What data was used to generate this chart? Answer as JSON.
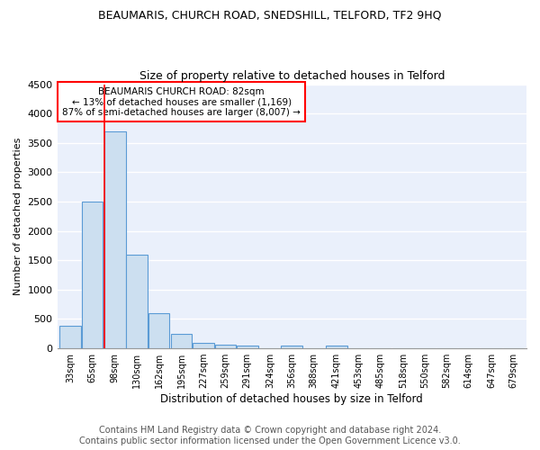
{
  "title1": "BEAUMARIS, CHURCH ROAD, SNEDSHILL, TELFORD, TF2 9HQ",
  "title2": "Size of property relative to detached houses in Telford",
  "xlabel": "Distribution of detached houses by size in Telford",
  "ylabel": "Number of detached properties",
  "footnote": "Contains HM Land Registry data © Crown copyright and database right 2024.\nContains public sector information licensed under the Open Government Licence v3.0.",
  "bins": [
    33,
    65,
    98,
    130,
    162,
    195,
    227,
    259,
    291,
    324,
    356,
    388,
    421,
    453,
    485,
    518,
    550,
    582,
    614,
    647,
    679
  ],
  "values": [
    380,
    2500,
    3700,
    1600,
    600,
    240,
    100,
    60,
    50,
    0,
    50,
    0,
    50,
    0,
    0,
    0,
    0,
    0,
    0,
    0,
    0
  ],
  "bar_color": "#ccdff0",
  "bar_edge_color": "#5b9bd5",
  "bar_edge_width": 0.8,
  "red_line_x": 82,
  "ylim": [
    0,
    4500
  ],
  "yticks": [
    0,
    500,
    1000,
    1500,
    2000,
    2500,
    3000,
    3500,
    4000,
    4500
  ],
  "annotation_text": "BEAUMARIS CHURCH ROAD: 82sqm\n← 13% of detached houses are smaller (1,169)\n87% of semi-detached houses are larger (8,007) →",
  "annotation_box_color": "white",
  "annotation_box_edge_color": "red",
  "bg_color": "#eaf0fb",
  "grid_color": "white",
  "title1_fontsize": 9,
  "title2_fontsize": 9,
  "footnote_fontsize": 7
}
